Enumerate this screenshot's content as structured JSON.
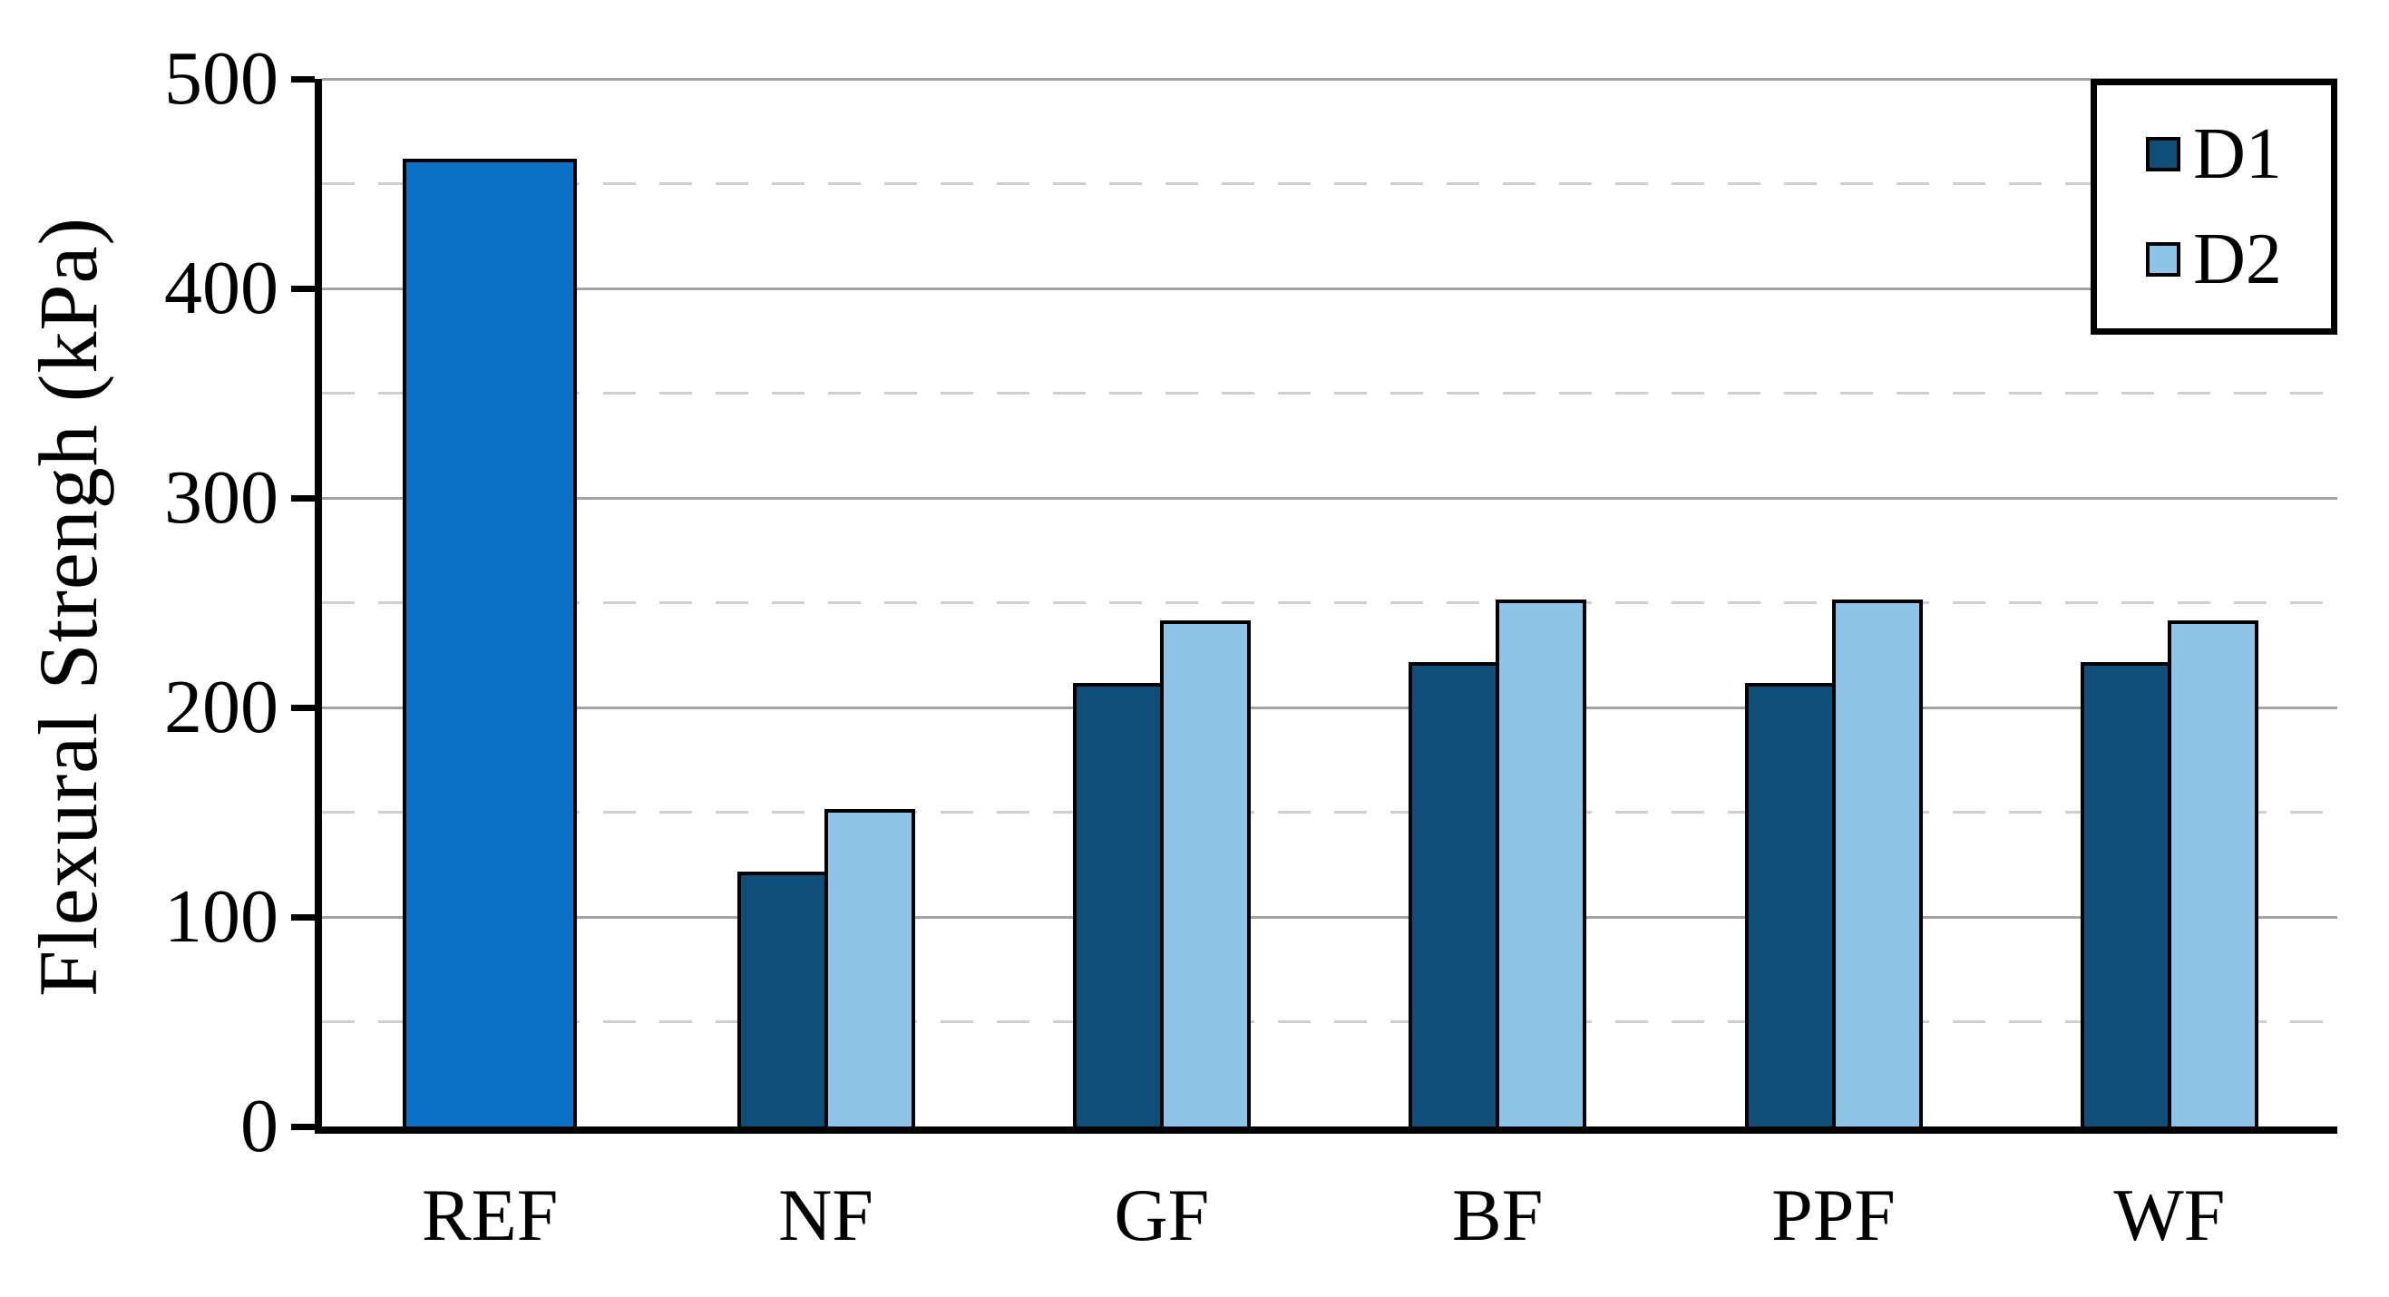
{
  "chart_data": {
    "type": "bar",
    "title": "",
    "xlabel": "",
    "ylabel": "Flexural Strengh (kPa)",
    "ylim": [
      0,
      500
    ],
    "y_major_step": 100,
    "y_minor_step": 50,
    "y_tick_labels": [
      "0",
      "100",
      "200",
      "300",
      "400",
      "500"
    ],
    "grid": "major solid gray, minor dashed light-gray",
    "legend_position": "top-right",
    "legend": [
      {
        "label": "D1",
        "color": "#0f4e79"
      },
      {
        "label": "D2",
        "color": "#8ec4e8"
      }
    ],
    "categories": [
      "REF",
      "NF",
      "GF",
      "BF",
      "PPF",
      "WF"
    ],
    "series": [
      {
        "name": "REF",
        "color": "#0c70c4",
        "in_legend": false,
        "values": [
          460,
          null,
          null,
          null,
          null,
          null
        ]
      },
      {
        "name": "D1",
        "color": "#0f4e79",
        "in_legend": true,
        "values": [
          null,
          120,
          210,
          220,
          210,
          220
        ]
      },
      {
        "name": "D2",
        "color": "#8ec4e8",
        "in_legend": true,
        "values": [
          null,
          150,
          240,
          250,
          250,
          240
        ]
      }
    ]
  },
  "colors": {
    "background": "#ffffff",
    "axis": "#000000",
    "major_gridline": "#a3a3a3",
    "minor_gridline": "#cfcfcf",
    "ref_bar": "#0c70c4",
    "d1_bar": "#0f4e79",
    "d2_bar": "#8ec4e8"
  }
}
